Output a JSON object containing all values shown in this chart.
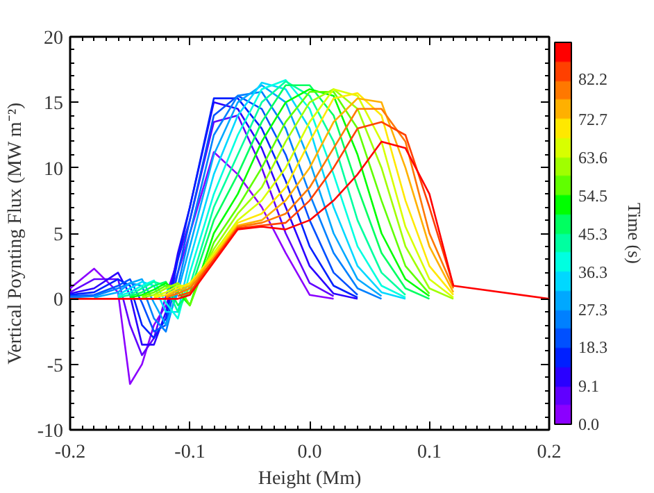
{
  "chart_data": {
    "type": "line",
    "xlabel": "Height (Mm)",
    "ylabel": "Vertical Poynting Flux (MW m⁻²)",
    "clabel": "Time (s)",
    "x": [
      -0.2,
      -0.18,
      -0.16,
      -0.15,
      -0.14,
      -0.13,
      -0.12,
      -0.11,
      -0.1,
      -0.08,
      -0.06,
      -0.04,
      -0.02,
      0,
      0.02,
      0.04,
      0.06,
      0.08,
      0.1,
      0.12,
      0.2
    ],
    "xlim": [
      -0.2,
      0.2
    ],
    "xticks": [
      -0.2,
      -0.1,
      {
        "value": 0,
        "label": "0.0"
      },
      0.1,
      0.2
    ],
    "ylim": [
      -10,
      20
    ],
    "yticks": [
      -10,
      -5,
      0,
      5,
      10,
      15,
      20
    ],
    "clim": [
      0,
      91
    ],
    "cticks": [
      {
        "value": 0,
        "label": "0.0"
      },
      9.1,
      18.3,
      27.3,
      36.3,
      45.3,
      54.5,
      63.6,
      72.7,
      82.2
    ],
    "grid": false,
    "line_style": "solid",
    "series": [
      {
        "color": "#8b00ff",
        "values": [
          0.8,
          2.3,
          0.5,
          -6.5,
          -5,
          -2,
          -0.5,
          2,
          5,
          11.2,
          9.5,
          7,
          3.5,
          0.3,
          0,
          null,
          null,
          null,
          null,
          null,
          null
        ]
      },
      {
        "color": "#6000ff",
        "values": [
          0.5,
          1.5,
          1.5,
          -2,
          -4.3,
          -3,
          0.2,
          3,
          6,
          13.5,
          14,
          10,
          5,
          1.2,
          0.2,
          null,
          null,
          null,
          null,
          null,
          null
        ]
      },
      {
        "color": "#2a00ff",
        "values": [
          0.4,
          0.8,
          2.0,
          0.3,
          -3.5,
          -3.5,
          -1,
          3.5,
          7,
          15,
          14.5,
          11.5,
          7,
          2.5,
          0.4,
          0,
          null,
          null,
          null,
          null,
          null
        ]
      },
      {
        "color": "#0020ff",
        "values": [
          0.3,
          0.5,
          1.5,
          1.0,
          -2,
          -3,
          -1.5,
          3,
          7,
          15.3,
          15.3,
          13,
          9,
          4,
          1,
          0.1,
          null,
          null,
          null,
          null,
          null
        ]
      },
      {
        "color": "#0050ff",
        "values": [
          0.2,
          0.3,
          1.0,
          1.5,
          -0.3,
          -2.5,
          -2,
          2,
          6,
          14,
          15.5,
          14.5,
          11,
          6,
          2,
          0.3,
          null,
          null,
          null,
          null,
          null
        ]
      },
      {
        "color": "#0080ff",
        "values": [
          0.1,
          0.2,
          0.8,
          1.2,
          1.0,
          -1.5,
          -2.5,
          1,
          5,
          12.5,
          15.5,
          15.8,
          13,
          8,
          3.5,
          0.8,
          0,
          null,
          null,
          null,
          null
        ]
      },
      {
        "color": "#00a8ff",
        "values": [
          null,
          0.1,
          0.5,
          1.2,
          1.5,
          -0.3,
          -2,
          0.5,
          4,
          11,
          15,
          16.3,
          15,
          10.5,
          5,
          1.5,
          0.2,
          null,
          null,
          null,
          null
        ]
      },
      {
        "color": "#00d8ff",
        "values": [
          null,
          null,
          0.3,
          0.8,
          1.3,
          1,
          -1,
          -1,
          3,
          9.5,
          14,
          16.5,
          16,
          13,
          7,
          2.5,
          0.5,
          0,
          null,
          null,
          null
        ]
      },
      {
        "color": "#00ffe0",
        "values": [
          null,
          null,
          0.2,
          0.5,
          1,
          1.4,
          -0.3,
          -1.5,
          2,
          8,
          12.5,
          16,
          16.7,
          14.5,
          9.5,
          4,
          1,
          0.1,
          null,
          null,
          null
        ]
      },
      {
        "color": "#00ffa0",
        "values": [
          null,
          null,
          0.1,
          0.3,
          0.8,
          1.3,
          1,
          -1,
          1,
          7,
          11,
          15,
          16.6,
          15.5,
          12,
          6,
          2,
          0.3,
          null,
          null,
          null
        ]
      },
      {
        "color": "#00ff60",
        "values": [
          null,
          null,
          null,
          0.2,
          0.5,
          1,
          1.3,
          -0.5,
          0.5,
          6,
          9.5,
          13.5,
          16.3,
          16.3,
          14,
          8.5,
          3.5,
          0.8,
          0,
          null,
          null
        ]
      },
      {
        "color": "#00ff00",
        "values": [
          null,
          null,
          null,
          0.1,
          0.3,
          0.7,
          1.2,
          0.5,
          -0.5,
          5,
          8,
          12,
          15,
          16,
          15.5,
          11,
          5,
          1.5,
          0.2,
          null,
          null
        ]
      },
      {
        "color": "#60ff00",
        "values": [
          null,
          null,
          null,
          null,
          0.2,
          0.5,
          1,
          1,
          -0.5,
          4.3,
          7,
          10,
          13.5,
          15.8,
          15.8,
          13,
          7.5,
          2.5,
          0.4,
          null,
          null
        ]
      },
      {
        "color": "#a0ff00",
        "values": [
          null,
          null,
          null,
          null,
          0.1,
          0.3,
          0.8,
          1.2,
          0.3,
          3.8,
          6.5,
          8.5,
          12,
          15,
          16,
          14.5,
          10,
          4,
          0.8,
          0,
          null
        ]
      },
      {
        "color": "#d8ff00",
        "values": [
          null,
          null,
          null,
          null,
          null,
          0.2,
          0.5,
          1,
          1,
          3.5,
          6,
          7.5,
          10,
          13.5,
          16,
          15.5,
          12,
          5.5,
          1.5,
          0.1,
          null
        ]
      },
      {
        "color": "#ffe800",
        "values": [
          null,
          null,
          null,
          null,
          null,
          0.1,
          0.3,
          0.8,
          1.2,
          3.3,
          5.8,
          6.5,
          8.5,
          12,
          15.3,
          15.7,
          14,
          7.5,
          2.5,
          0.3,
          null
        ]
      },
      {
        "color": "#ffb000",
        "values": [
          null,
          null,
          null,
          null,
          null,
          null,
          0.2,
          0.6,
          1,
          3.2,
          5.6,
          6,
          7.5,
          10,
          13.5,
          15.3,
          15,
          10,
          4,
          0.5,
          null
        ]
      },
      {
        "color": "#ff7800",
        "values": [
          null,
          null,
          null,
          null,
          null,
          null,
          0.1,
          0.4,
          0.8,
          3,
          5.5,
          5.8,
          6.5,
          8.5,
          11.5,
          14.5,
          14.5,
          12,
          5,
          0.8,
          null
        ]
      },
      {
        "color": "#ff4000",
        "values": [
          null,
          null,
          null,
          null,
          null,
          null,
          null,
          0.2,
          0.5,
          3,
          5.4,
          5.6,
          5.8,
          7.5,
          10,
          13,
          13.5,
          12.5,
          7,
          1,
          null
        ]
      },
      {
        "color": "#ff0000",
        "values": [
          0,
          0,
          0,
          0,
          0,
          0,
          0,
          0,
          0.3,
          2.8,
          5.3,
          5.5,
          5.3,
          6,
          7.5,
          9.5,
          12,
          11.5,
          8,
          1,
          0
        ]
      }
    ]
  }
}
